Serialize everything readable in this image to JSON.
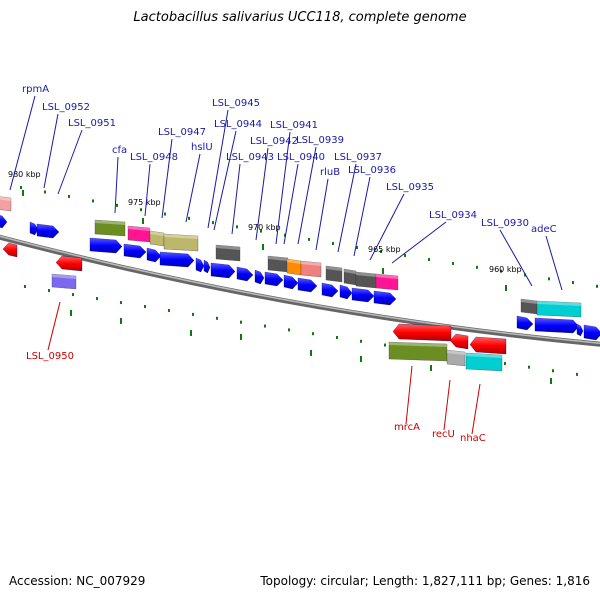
{
  "title": "Lactobacillus salivarius UCC118, complete genome",
  "footer": {
    "accession": "Accession: NC_007929",
    "summary": "Topology: circular; Length: 1,827,111 bp; Genes: 1,816"
  },
  "ticks": [
    {
      "label": "980 kbp"
    },
    {
      "label": "975 kbp"
    },
    {
      "label": "970 kbp"
    },
    {
      "label": "965 kbp"
    },
    {
      "label": "960 kbp"
    }
  ],
  "gene_labels_top": [
    {
      "name": "rpmA"
    },
    {
      "name": "LSL_0952"
    },
    {
      "name": "LSL_0951"
    },
    {
      "name": "cfa"
    },
    {
      "name": "LSL_0948"
    },
    {
      "name": "LSL_0947"
    },
    {
      "name": "hslU"
    },
    {
      "name": "LSL_0945"
    },
    {
      "name": "LSL_0944"
    },
    {
      "name": "LSL_0943"
    },
    {
      "name": "LSL_0942"
    },
    {
      "name": "LSL_0941"
    },
    {
      "name": "LSL_0940"
    },
    {
      "name": "LSL_0939"
    },
    {
      "name": "rluB"
    },
    {
      "name": "LSL_0937"
    },
    {
      "name": "LSL_0936"
    },
    {
      "name": "LSL_0935"
    },
    {
      "name": "LSL_0934"
    },
    {
      "name": "LSL_0930"
    },
    {
      "name": "adeC"
    }
  ],
  "gene_labels_bottom": [
    {
      "name": "LSL_0950"
    },
    {
      "name": "mrcA"
    },
    {
      "name": "recU"
    },
    {
      "name": "nhaC"
    }
  ],
  "colors": {
    "cds": "#0a0aff",
    "cds_reverse": "#ff0000",
    "backbone": "#888888",
    "label_forward": "#1a1aa6",
    "label_reverse": "#cc0000",
    "tick": "#117711",
    "cog_green": "#6b8e23",
    "cog_magenta": "#ff1493",
    "cog_khaki": "#bdb76b",
    "cog_grey": "#555555",
    "cog_orange": "#ff8c00",
    "cog_pink": "#f08080",
    "cog_cyan": "#00ced1",
    "cog_purple": "#7b68ee",
    "cog_silver": "#aaaaaa"
  }
}
